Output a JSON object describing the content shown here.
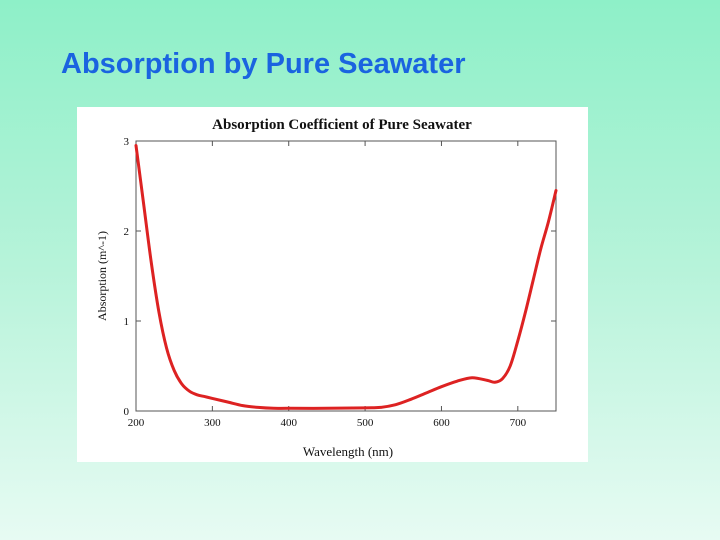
{
  "slide": {
    "title": "Absorption by Pure Seawater"
  },
  "colors": {
    "title": "#1a64e0",
    "curve": "#dd2222",
    "background_top": "#8ef0c8",
    "background_bottom": "#e7fbf3"
  },
  "chart_data": {
    "type": "line",
    "title": "Absorption Coefficient of Pure Seawater",
    "xlabel": "Wavelength (nm)",
    "ylabel": "Absorption (m^-1)",
    "xlim": [
      200,
      750
    ],
    "ylim": [
      0,
      3
    ],
    "xticks": [
      200,
      300,
      400,
      500,
      600,
      700
    ],
    "yticks": [
      0,
      1,
      2,
      3
    ],
    "grid": false,
    "series": [
      {
        "x": [
          200,
          210,
          220,
          230,
          240,
          250,
          260,
          270,
          280,
          290,
          300,
          320,
          340,
          360,
          380,
          400,
          450,
          500,
          520,
          540,
          560,
          580,
          600,
          620,
          640,
          660,
          670,
          680,
          690,
          700,
          710,
          720,
          730,
          740,
          750
        ],
        "values": [
          2.95,
          2.3,
          1.65,
          1.1,
          0.7,
          0.45,
          0.3,
          0.22,
          0.18,
          0.16,
          0.14,
          0.1,
          0.06,
          0.04,
          0.03,
          0.03,
          0.03,
          0.035,
          0.04,
          0.07,
          0.13,
          0.2,
          0.27,
          0.33,
          0.37,
          0.34,
          0.32,
          0.36,
          0.5,
          0.78,
          1.1,
          1.45,
          1.8,
          2.1,
          2.45
        ]
      }
    ]
  }
}
